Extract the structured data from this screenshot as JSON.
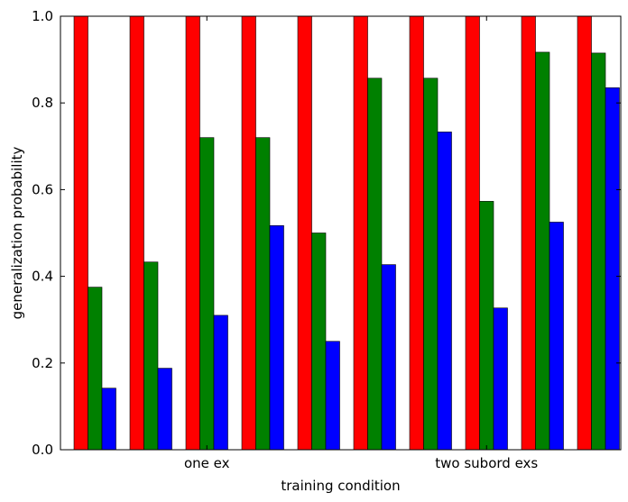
{
  "chart_data": {
    "type": "bar",
    "title": "",
    "xlabel": "training condition",
    "ylabel": "generalization probability",
    "ylim": [
      0,
      1
    ],
    "yticks": [
      "0.0",
      "0.2",
      "0.4",
      "0.6",
      "0.8",
      "1.0"
    ],
    "xtick_labels": [
      {
        "label": "one ex",
        "group": 2
      },
      {
        "label": "two subord exs",
        "group": 7
      }
    ],
    "groups": 10,
    "series": [
      {
        "color": "#ff0000",
        "values": [
          1.0,
          1.0,
          1.0,
          1.0,
          1.0,
          1.0,
          1.0,
          1.0,
          1.0,
          1.0
        ]
      },
      {
        "color": "#008000",
        "values": [
          0.375,
          0.433,
          0.72,
          0.72,
          0.5,
          0.857,
          0.857,
          0.573,
          0.917,
          0.915
        ]
      },
      {
        "color": "#0000ff",
        "values": [
          0.142,
          0.188,
          0.31,
          0.517,
          0.25,
          0.427,
          0.733,
          0.327,
          0.525,
          0.835
        ]
      }
    ],
    "grid": false,
    "legend": "none"
  }
}
